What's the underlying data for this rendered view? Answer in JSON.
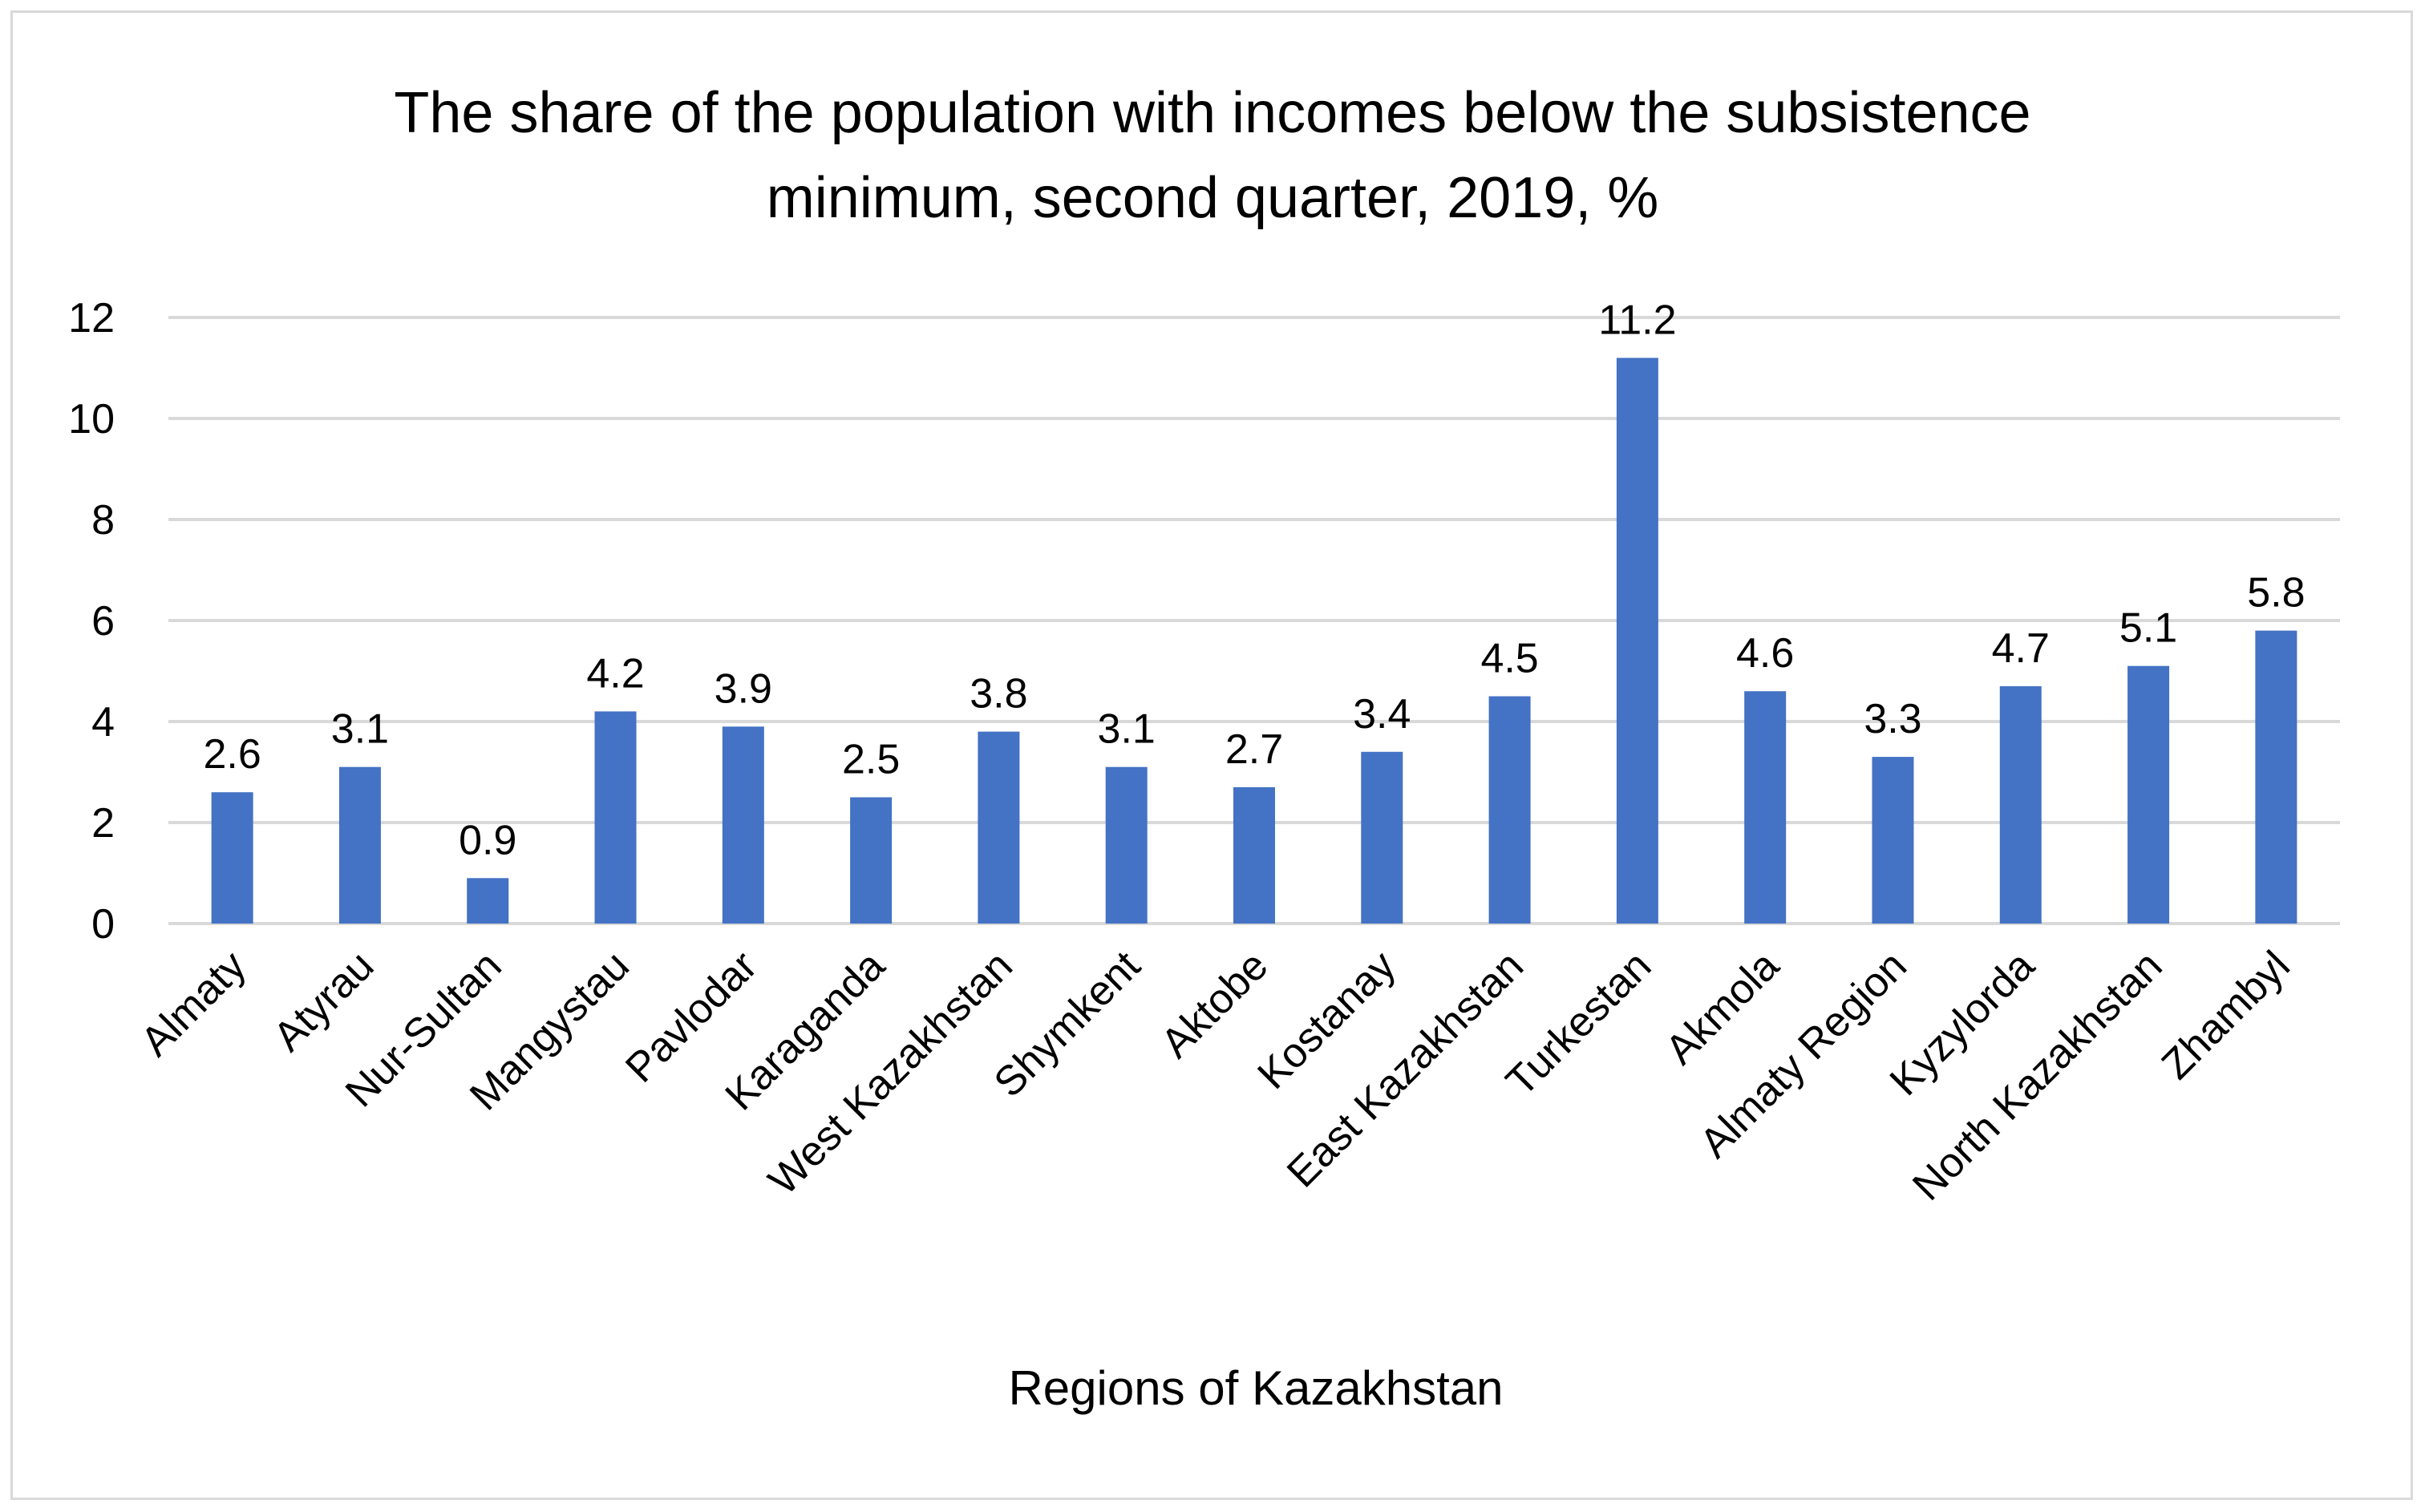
{
  "chart_data": {
    "type": "bar",
    "title_lines": [
      "The share of the population with incomes below the subsistence",
      "minimum, second quarter, 2019, %"
    ],
    "xlabel": "Regions of Kazakhstan",
    "ylabel": "",
    "ylim": [
      0,
      12
    ],
    "yticks": [
      0,
      2,
      4,
      6,
      8,
      10,
      12
    ],
    "grid": true,
    "legend": "none",
    "bar_color": "#4472c4",
    "categories": [
      "Almaty",
      "Atyrau",
      "Nur-Sultan",
      "Mangystau",
      "Pavlodar",
      "Karaganda",
      "West Kazakhstan",
      "Shymkent",
      "Aktobe",
      "Kostanay",
      "East Kazakhstan",
      "Turkestan",
      "Akmola",
      "Almaty Region",
      "Kyzylorda",
      "North Kazakhstan",
      "Zhambyl"
    ],
    "values": [
      2.6,
      3.1,
      0.9,
      4.2,
      3.9,
      2.5,
      3.8,
      3.1,
      2.7,
      3.4,
      4.5,
      11.2,
      4.6,
      3.3,
      4.7,
      5.1,
      5.8
    ],
    "value_labels": [
      "2.6",
      "3.1",
      "0.9",
      "4.2",
      "3.9",
      "2.5",
      "3.8",
      "3.1",
      "2.7",
      "3.4",
      "4.5",
      "11.2",
      "4.6",
      "3.3",
      "4.7",
      "5.1",
      "5.8"
    ]
  }
}
